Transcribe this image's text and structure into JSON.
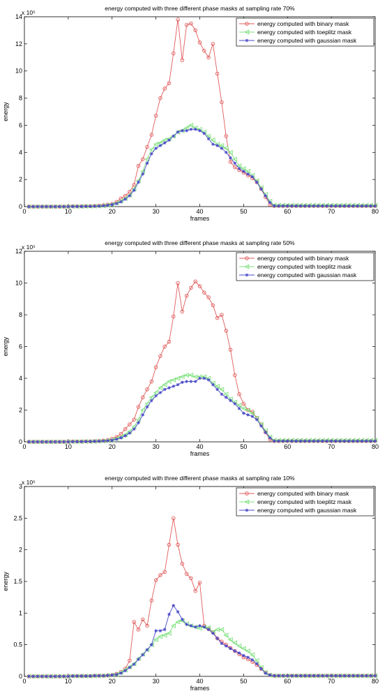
{
  "chart_data": [
    {
      "type": "line",
      "title": "energy computed with three different phase masks at sampling rate 70%",
      "xlabel": "frames",
      "ylabel": "energy",
      "y_exponent": "x 10⁵",
      "xlim": [
        0,
        80
      ],
      "ylim": [
        0,
        14
      ],
      "xticks": [
        "0",
        "10",
        "20",
        "30",
        "40",
        "50",
        "60",
        "70",
        "80"
      ],
      "yticks": [
        "0",
        "2",
        "4",
        "6",
        "8",
        "10",
        "12",
        "14"
      ],
      "legend_position": "top-right",
      "grid": false,
      "x": [
        1,
        2,
        3,
        4,
        5,
        6,
        7,
        8,
        9,
        10,
        11,
        12,
        13,
        14,
        15,
        16,
        17,
        18,
        19,
        20,
        21,
        22,
        23,
        24,
        25,
        26,
        27,
        28,
        29,
        30,
        31,
        32,
        33,
        34,
        35,
        36,
        37,
        38,
        39,
        40,
        41,
        42,
        43,
        44,
        45,
        46,
        47,
        48,
        49,
        50,
        51,
        52,
        53,
        54,
        55,
        56,
        57,
        58,
        59,
        60,
        61,
        62,
        63,
        64,
        65,
        66,
        67,
        68,
        69,
        70,
        71,
        72,
        73,
        74,
        75,
        76,
        77,
        78,
        79,
        80
      ],
      "series": [
        {
          "name": "energy computed with binary mask",
          "color": "#e05a5a",
          "marker": "circle",
          "values": [
            0,
            0,
            0,
            0,
            0,
            0,
            0,
            0,
            0,
            0,
            0.02,
            0.02,
            0.02,
            0.03,
            0.03,
            0.05,
            0.06,
            0.1,
            0.15,
            0.2,
            0.35,
            0.6,
            0.8,
            1.1,
            1.6,
            3.0,
            3.5,
            4.4,
            5.3,
            6.7,
            8.0,
            8.7,
            9.1,
            11.3,
            13.8,
            10.8,
            13.4,
            13.5,
            13.0,
            12.1,
            11.5,
            11.0,
            12.0,
            9.8,
            7.7,
            5.2,
            3.3,
            2.9,
            2.7,
            2.5,
            2.3,
            2.1,
            1.8,
            1.3,
            0.7,
            0.15,
            0.05,
            0.05,
            0.05,
            0.05,
            0.05,
            0.05,
            0.05,
            0.05,
            0.05,
            0.05,
            0.05,
            0.05,
            0.05,
            0.05,
            0.05,
            0.05,
            0.05,
            0.05,
            0.05,
            0.05,
            0.05,
            0.05,
            0.05,
            0.05
          ]
        },
        {
          "name": "energy computed with toeplitz mask",
          "color": "#7de07d",
          "marker": "triangle-left",
          "values": [
            0,
            0,
            0,
            0,
            0,
            0,
            0,
            0,
            0,
            0,
            0.01,
            0.01,
            0.01,
            0.02,
            0.02,
            0.03,
            0.04,
            0.06,
            0.1,
            0.15,
            0.25,
            0.4,
            0.6,
            0.85,
            1.3,
            1.9,
            2.6,
            3.5,
            4.2,
            4.6,
            4.7,
            4.9,
            5.0,
            5.2,
            5.5,
            5.6,
            5.8,
            6.0,
            5.8,
            5.7,
            5.5,
            5.2,
            4.9,
            4.6,
            4.5,
            4.3,
            4.0,
            3.5,
            3.0,
            2.8,
            2.6,
            2.3,
            1.9,
            1.4,
            0.9,
            0.4,
            0.1,
            0.1,
            0.1,
            0.1,
            0.1,
            0.1,
            0.1,
            0.1,
            0.1,
            0.1,
            0.1,
            0.1,
            0.1,
            0.1,
            0.1,
            0.1,
            0.1,
            0.1,
            0.1,
            0.1,
            0.1,
            0.1,
            0.1,
            0.1
          ]
        },
        {
          "name": "energy computed with gaussian mask",
          "color": "#4848c8",
          "marker": "star",
          "values": [
            0,
            0,
            0,
            0,
            0,
            0,
            0,
            0,
            0,
            0,
            0.01,
            0.01,
            0.01,
            0.02,
            0.02,
            0.03,
            0.04,
            0.06,
            0.1,
            0.15,
            0.22,
            0.35,
            0.55,
            0.8,
            1.2,
            1.8,
            2.4,
            3.2,
            3.9,
            4.3,
            4.5,
            4.7,
            4.9,
            5.2,
            5.5,
            5.6,
            5.6,
            5.7,
            5.7,
            5.6,
            5.4,
            5.0,
            4.6,
            4.5,
            4.3,
            4.0,
            3.6,
            3.2,
            2.8,
            2.6,
            2.4,
            2.2,
            1.8,
            1.3,
            0.8,
            0.3,
            0.05,
            0.05,
            0.05,
            0.05,
            0.05,
            0.05,
            0.05,
            0.05,
            0.05,
            0.05,
            0.05,
            0.05,
            0.05,
            0.05,
            0.05,
            0.05,
            0.05,
            0.05,
            0.05,
            0.05,
            0.05,
            0.05,
            0.05,
            0.05
          ]
        }
      ]
    },
    {
      "type": "line",
      "title": "energy computed with three different phase masks at sampling rate 50%",
      "xlabel": "frames",
      "ylabel": "energy",
      "y_exponent": "x 10⁵",
      "xlim": [
        0,
        80
      ],
      "ylim": [
        0,
        12
      ],
      "xticks": [
        "0",
        "10",
        "20",
        "30",
        "40",
        "50",
        "60",
        "70",
        "80"
      ],
      "yticks": [
        "0",
        "2",
        "4",
        "6",
        "8",
        "10",
        "12"
      ],
      "legend_position": "top-right",
      "grid": false,
      "x": [
        1,
        2,
        3,
        4,
        5,
        6,
        7,
        8,
        9,
        10,
        11,
        12,
        13,
        14,
        15,
        16,
        17,
        18,
        19,
        20,
        21,
        22,
        23,
        24,
        25,
        26,
        27,
        28,
        29,
        30,
        31,
        32,
        33,
        34,
        35,
        36,
        37,
        38,
        39,
        40,
        41,
        42,
        43,
        44,
        45,
        46,
        47,
        48,
        49,
        50,
        51,
        52,
        53,
        54,
        55,
        56,
        57,
        58,
        59,
        60,
        61,
        62,
        63,
        64,
        65,
        66,
        67,
        68,
        69,
        70,
        71,
        72,
        73,
        74,
        75,
        76,
        77,
        78,
        79,
        80
      ],
      "series": [
        {
          "name": "energy computed with binary mask",
          "color": "#e05a5a",
          "marker": "circle",
          "values": [
            0,
            0,
            0,
            0,
            0,
            0,
            0,
            0,
            0,
            0,
            0.02,
            0.02,
            0.02,
            0.03,
            0.03,
            0.04,
            0.05,
            0.08,
            0.12,
            0.2,
            0.3,
            0.5,
            0.8,
            1.1,
            1.4,
            2.2,
            2.8,
            3.3,
            3.8,
            4.7,
            5.4,
            6.0,
            6.3,
            7.9,
            10.0,
            8.2,
            9.2,
            9.7,
            10.1,
            9.8,
            9.4,
            9.1,
            8.6,
            7.8,
            8.0,
            7.0,
            5.8,
            4.2,
            3.0,
            2.4,
            2.0,
            1.9,
            1.5,
            1.1,
            0.6,
            0.15,
            0.05,
            0.05,
            0.05,
            0.05,
            0.05,
            0.05,
            0.05,
            0.05,
            0.05,
            0.05,
            0.05,
            0.05,
            0.05,
            0.05,
            0.05,
            0.05,
            0.05,
            0.05,
            0.05,
            0.05,
            0.05,
            0.05,
            0.05,
            0.05
          ]
        },
        {
          "name": "energy computed with toeplitz mask",
          "color": "#7de07d",
          "marker": "triangle-left",
          "values": [
            0,
            0,
            0,
            0,
            0,
            0,
            0,
            0,
            0,
            0,
            0.01,
            0.01,
            0.01,
            0.02,
            0.02,
            0.03,
            0.04,
            0.05,
            0.08,
            0.12,
            0.2,
            0.3,
            0.45,
            0.65,
            0.95,
            1.4,
            2.0,
            2.4,
            2.8,
            3.1,
            3.4,
            3.6,
            3.8,
            3.9,
            4.0,
            4.1,
            4.2,
            4.2,
            4.1,
            4.1,
            4.1,
            4.0,
            3.7,
            3.5,
            3.3,
            3.0,
            2.7,
            2.5,
            2.3,
            2.1,
            2.0,
            1.8,
            1.5,
            1.1,
            0.7,
            0.3,
            0.1,
            0.1,
            0.1,
            0.1,
            0.1,
            0.1,
            0.1,
            0.1,
            0.1,
            0.1,
            0.1,
            0.1,
            0.1,
            0.1,
            0.1,
            0.1,
            0.1,
            0.1,
            0.1,
            0.1,
            0.1,
            0.1,
            0.1,
            0.1
          ]
        },
        {
          "name": "energy computed with gaussian mask",
          "color": "#4848c8",
          "marker": "star",
          "values": [
            0,
            0,
            0,
            0,
            0,
            0,
            0,
            0,
            0,
            0,
            0.01,
            0.01,
            0.01,
            0.02,
            0.02,
            0.03,
            0.04,
            0.05,
            0.07,
            0.1,
            0.16,
            0.25,
            0.38,
            0.55,
            0.8,
            1.2,
            1.7,
            2.2,
            2.6,
            2.9,
            3.1,
            3.3,
            3.4,
            3.5,
            3.6,
            3.75,
            3.8,
            3.8,
            3.8,
            4.0,
            4.0,
            3.9,
            3.6,
            3.3,
            3.0,
            2.8,
            2.6,
            2.4,
            2.1,
            1.8,
            1.7,
            1.6,
            1.4,
            1.0,
            0.6,
            0.25,
            0.05,
            0.05,
            0.05,
            0.05,
            0.05,
            0.05,
            0.05,
            0.05,
            0.05,
            0.05,
            0.05,
            0.05,
            0.05,
            0.05,
            0.05,
            0.05,
            0.05,
            0.05,
            0.05,
            0.05,
            0.05,
            0.05,
            0.05,
            0.05
          ]
        }
      ]
    },
    {
      "type": "line",
      "title": "energy computed with three different phase masks at sampling rate 10%",
      "xlabel": "frames",
      "ylabel": "energy",
      "y_exponent": "x 10⁵",
      "xlim": [
        0,
        80
      ],
      "ylim": [
        0,
        3
      ],
      "xticks": [
        "0",
        "10",
        "20",
        "30",
        "40",
        "50",
        "60",
        "70",
        "80"
      ],
      "yticks": [
        "0",
        "0.5",
        "1",
        "1.5",
        "2",
        "2.5",
        "3"
      ],
      "legend_position": "top-right",
      "grid": false,
      "x": [
        1,
        2,
        3,
        4,
        5,
        6,
        7,
        8,
        9,
        10,
        11,
        12,
        13,
        14,
        15,
        16,
        17,
        18,
        19,
        20,
        21,
        22,
        23,
        24,
        25,
        26,
        27,
        28,
        29,
        30,
        31,
        32,
        33,
        34,
        35,
        36,
        37,
        38,
        39,
        40,
        41,
        42,
        43,
        44,
        45,
        46,
        47,
        48,
        49,
        50,
        51,
        52,
        53,
        54,
        55,
        56,
        57,
        58,
        59,
        60,
        61,
        62,
        63,
        64,
        65,
        66,
        67,
        68,
        69,
        70,
        71,
        72,
        73,
        74,
        75,
        76,
        77,
        78,
        79,
        80
      ],
      "series": [
        {
          "name": "energy computed with binary mask",
          "color": "#e05a5a",
          "marker": "circle",
          "values": [
            0,
            0,
            0,
            0,
            0,
            0,
            0,
            0,
            0,
            0,
            0.005,
            0.005,
            0.005,
            0.005,
            0.005,
            0.01,
            0.01,
            0.01,
            0.015,
            0.02,
            0.04,
            0.07,
            0.12,
            0.25,
            0.86,
            0.74,
            0.9,
            0.8,
            1.2,
            1.52,
            1.6,
            1.65,
            2.08,
            2.5,
            2.08,
            1.78,
            1.62,
            1.55,
            1.35,
            1.48,
            0.8,
            0.75,
            0.7,
            0.6,
            0.55,
            0.5,
            0.45,
            0.4,
            0.35,
            0.3,
            0.27,
            0.23,
            0.18,
            0.12,
            0.06,
            0.02,
            0.01,
            0.01,
            0.01,
            0.01,
            0.01,
            0.01,
            0.01,
            0.01,
            0.01,
            0.01,
            0.01,
            0.01,
            0.01,
            0.01,
            0.01,
            0.01,
            0.01,
            0.01,
            0.01,
            0.01,
            0.01,
            0.01,
            0.01,
            0.01
          ]
        },
        {
          "name": "energy computed with toeplitz mask",
          "color": "#7de07d",
          "marker": "triangle-left",
          "values": [
            0,
            0,
            0,
            0,
            0,
            0,
            0,
            0,
            0,
            0,
            0.005,
            0.005,
            0.005,
            0.005,
            0.005,
            0.01,
            0.01,
            0.01,
            0.015,
            0.02,
            0.03,
            0.06,
            0.1,
            0.15,
            0.2,
            0.28,
            0.35,
            0.42,
            0.5,
            0.58,
            0.63,
            0.65,
            0.68,
            0.8,
            0.86,
            0.88,
            0.83,
            0.8,
            0.78,
            0.76,
            0.78,
            0.77,
            0.7,
            0.74,
            0.74,
            0.65,
            0.58,
            0.53,
            0.48,
            0.44,
            0.4,
            0.34,
            0.25,
            0.14,
            0.06,
            0.02,
            0.01,
            0.01,
            0.01,
            0.01,
            0.01,
            0.01,
            0.01,
            0.01,
            0.01,
            0.01,
            0.01,
            0.01,
            0.01,
            0.01,
            0.01,
            0.01,
            0.01,
            0.01,
            0.01,
            0.01,
            0.01,
            0.01,
            0.01,
            0.01
          ]
        },
        {
          "name": "energy computed with gaussian mask",
          "color": "#4848c8",
          "marker": "star",
          "values": [
            0,
            0,
            0,
            0,
            0,
            0,
            0,
            0,
            0,
            0,
            0.005,
            0.005,
            0.005,
            0.005,
            0.005,
            0.01,
            0.01,
            0.01,
            0.015,
            0.02,
            0.03,
            0.05,
            0.09,
            0.14,
            0.19,
            0.27,
            0.34,
            0.42,
            0.5,
            0.72,
            0.72,
            0.74,
            0.98,
            1.12,
            1.02,
            0.9,
            0.82,
            0.8,
            0.78,
            0.8,
            0.78,
            0.74,
            0.68,
            0.6,
            0.52,
            0.48,
            0.44,
            0.4,
            0.37,
            0.33,
            0.3,
            0.26,
            0.2,
            0.12,
            0.05,
            0.02,
            0.01,
            0.01,
            0.01,
            0.01,
            0.01,
            0.01,
            0.01,
            0.01,
            0.01,
            0.01,
            0.01,
            0.01,
            0.01,
            0.01,
            0.01,
            0.01,
            0.01,
            0.01,
            0.01,
            0.01,
            0.01,
            0.01,
            0.01,
            0.01
          ]
        }
      ]
    }
  ]
}
